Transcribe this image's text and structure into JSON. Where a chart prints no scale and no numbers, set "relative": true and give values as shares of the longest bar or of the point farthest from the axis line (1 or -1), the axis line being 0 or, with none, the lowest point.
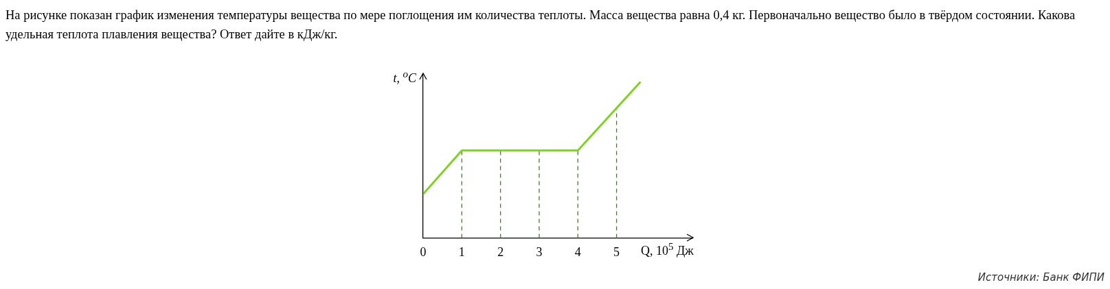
{
  "chart_data": {
    "type": "line",
    "title": "На рисунке показан график изменения температуры вещества по мере поглощения им количества теплоты. Масса вещества равна 0,4 кг. Первоначально вещество было в твёрдом состоянии. Какова удельная теплота плавления вещества? Ответ дайте в кДж/кг.",
    "xlabel": "Q, 10$^{5}$ Дж",
    "ylabel": "t, $^{o}$C",
    "annotations": [
      "Источники: Банк ФИПИ"
    ],
    "x": [
      0,
      1,
      4,
      5.62
    ],
    "series": [
      {
        "color": "#7ed321",
        "values": [
          0.28,
          0.56,
          0.56,
          1
        ]
      }
    ],
    "relative": true,
    "xlim": [
      0,
      6.96
    ],
    "xticks": [
      0,
      1,
      2,
      3,
      4,
      5
    ],
    "grid": false,
    "legend": false,
    "marker": "none",
    "line_style": "solid",
    "ref_lines": [
      {
        "axis": "x",
        "value": 1,
        "color": "#4a7a2a",
        "line_style": "dashed"
      },
      {
        "axis": "x",
        "value": 2,
        "color": "#4a7a2a",
        "line_style": "dashed"
      },
      {
        "axis": "x",
        "value": 3,
        "color": "#4a7a2a",
        "line_style": "dashed"
      },
      {
        "axis": "x",
        "value": 4,
        "color": "#4a7a2a",
        "line_style": "dashed"
      },
      {
        "axis": "x",
        "value": 5,
        "color": "#4a7a2a",
        "line_style": "dashed"
      }
    ]
  }
}
